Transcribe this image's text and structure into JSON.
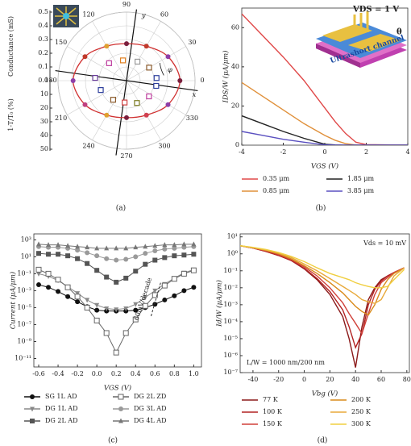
{
  "chart_data": [
    {
      "type": "polar",
      "caption": "(a)",
      "angle_ticks": [
        0,
        30,
        60,
        90,
        120,
        150,
        180,
        210,
        240,
        270,
        300,
        330
      ],
      "rlim": [
        0,
        0.5
      ],
      "r2lim": [
        0,
        50
      ],
      "rticks": [
        0.5,
        0.4,
        0.3,
        0.2,
        0.1,
        {
          "value": 0,
          "label": "0.0"
        }
      ],
      "r2ticks": [
        10,
        20,
        30,
        40,
        50
      ],
      "rlabel": "Conductance (mS)",
      "r2label": "1-T/T₀ (%)",
      "axis_labels": {
        "x": "x",
        "y": "y",
        "angle": "φ"
      },
      "series": [
        {
          "axis": "r",
          "marker": "circle",
          "line_color": "#d03030",
          "theta": [
            0,
            30,
            60,
            90,
            120,
            150,
            180,
            210,
            240,
            270,
            300,
            330
          ],
          "values": [
            0.39,
            0.35,
            0.29,
            0.27,
            0.29,
            0.35,
            0.39,
            0.35,
            0.29,
            0.27,
            0.29,
            0.35
          ],
          "colors": [
            "#7a1f3d",
            "#8e3fa8",
            "#c0392b",
            "#7a1f3d",
            "#e0a030",
            "#c0392b",
            "#8e3fa8",
            "#c04080",
            "#e0a030",
            "#7a1f3d",
            "#d04050",
            "#8e3fa8"
          ]
        },
        {
          "axis": "r2",
          "marker": "square",
          "theta": [
            5,
            30,
            60,
            100,
            135,
            175,
            200,
            235,
            265,
            295,
            325,
            350
          ],
          "values": [
            22,
            19,
            16,
            15,
            18,
            23,
            20,
            17,
            16,
            18,
            20,
            22
          ],
          "colors": [
            "#2c3e9c",
            "#8b5a2b",
            "#9a9a9a",
            "#e08020",
            "#c040a0",
            "#6a3d9a",
            "#2c3e9c",
            "#8b5a2b",
            "#d04040",
            "#7a7a20",
            "#c040a0",
            "#2c3e9c"
          ]
        }
      ]
    },
    {
      "type": "line",
      "caption": "(b)",
      "x_label": "VGS (V)",
      "y_label": "IDS/W (μA/μm)",
      "xlim": [
        -4,
        4
      ],
      "xticks": [
        -4,
        -2,
        0,
        2,
        4
      ],
      "ylim": [
        0,
        70
      ],
      "yticks": [
        0,
        20,
        40,
        60
      ],
      "legend": "bottom",
      "inset_texts": [
        "VDS = 1 V",
        "θ",
        "Ultrashort channel"
      ],
      "x": [
        -4,
        -3,
        -2,
        -1,
        0,
        0.5,
        1,
        1.5,
        2,
        4
      ],
      "series": [
        {
          "name": "0.35 μm",
          "color": "#e04848",
          "values": [
            67,
            56,
            45,
            33,
            19,
            12,
            6,
            1.5,
            0.3,
            0
          ]
        },
        {
          "name": "0.85 μm",
          "color": "#e0903a",
          "values": [
            32,
            25,
            18,
            11,
            5,
            2.5,
            0.8,
            0.1,
            0,
            0
          ]
        },
        {
          "name": "1.85 μm",
          "color": "#222222",
          "values": [
            15,
            11,
            7,
            3.5,
            0.5,
            0.1,
            0,
            0,
            0,
            0
          ]
        },
        {
          "name": "3.85 μm",
          "color": "#5a50c0",
          "values": [
            7,
            5,
            3,
            1.5,
            0.2,
            0,
            0,
            0,
            0,
            0
          ]
        }
      ]
    },
    {
      "type": "line",
      "caption": "(c)",
      "x_label": "VGS (V)",
      "y_label": "Current (μA/μm)",
      "log_y": true,
      "markers": true,
      "legend": "bottom",
      "annotation": "60mV/decade",
      "xlim": [
        -0.65,
        1.08
      ],
      "xticks": [
        -0.6,
        -0.4,
        -0.2,
        {
          "value": 0,
          "label": "0.0"
        },
        0.2,
        0.4,
        0.6,
        0.8,
        {
          "value": 1,
          "label": "1.0"
        }
      ],
      "ylim": [
        1e-12,
        5000
      ],
      "yticks": [
        {
          "value": 1000,
          "label": "10³"
        },
        {
          "value": 10,
          "label": "10¹"
        },
        {
          "value": 0.1,
          "label": "10⁻¹"
        },
        {
          "value": 0.001,
          "label": "10⁻³"
        },
        {
          "value": 1e-05,
          "label": "10⁻⁵"
        },
        {
          "value": 1e-07,
          "label": "10⁻⁷"
        },
        {
          "value": 1e-09,
          "label": "10⁻⁹"
        },
        {
          "value": 1e-11,
          "label": "10⁻¹¹"
        }
      ],
      "x": [
        -0.6,
        -0.5,
        -0.4,
        -0.3,
        -0.2,
        -0.1,
        0,
        0.1,
        0.2,
        0.3,
        0.4,
        0.5,
        0.6,
        0.7,
        0.8,
        0.9,
        1
      ],
      "series": [
        {
          "name": "SG 1L AD",
          "color": "#111111",
          "marker": "circle",
          "values": [
            0.005,
            0.0025,
            0.0008,
            0.0002,
            5e-05,
            1.3e-05,
            5e-06,
            4e-06,
            4e-06,
            4e-06,
            5e-06,
            1e-05,
            2.5e-05,
            8e-05,
            0.00025,
            0.001,
            0.0025
          ]
        },
        {
          "name": "DG 1L AD",
          "color": "#888888",
          "marker": "triangle-down",
          "values": [
            0.1,
            0.05,
            0.016,
            0.003,
            0.0005,
            8e-05,
            2e-05,
            8e-06,
            6e-06,
            8e-06,
            2.5e-05,
            0.00016,
            0.001,
            0.006,
            0.03,
            0.13,
            0.3
          ]
        },
        {
          "name": "DG 2L AD",
          "color": "#555555",
          "marker": "square",
          "values": [
            25,
            20,
            20,
            13,
            6,
            1.6,
            0.25,
            0.04,
            0.01,
            0.03,
            0.2,
            1.3,
            4,
            8,
            13,
            16,
            20
          ]
        },
        {
          "name": "DG 2L ZD",
          "color": "#666666",
          "marker": "square-open",
          "values": [
            0.3,
            0.1,
            0.02,
            0.0025,
            0.0002,
            1e-05,
            3e-07,
            1e-08,
            5e-11,
            1e-08,
            4e-07,
            1.6e-05,
            0.0003,
            0.004,
            0.025,
            0.1,
            0.25
          ]
        },
        {
          "name": "DG 3L AD",
          "color": "#9a9a9a",
          "marker": "circle",
          "values": [
            160,
            130,
            130,
            100,
            60,
            30,
            13,
            6,
            4,
            5,
            10,
            25,
            50,
            80,
            100,
            130,
            160
          ]
        },
        {
          "name": "DG 4L AD",
          "color": "#777777",
          "marker": "triangle-up",
          "values": [
            300,
            250,
            250,
            200,
            160,
            130,
            100,
            100,
            100,
            100,
            130,
            160,
            200,
            250,
            250,
            300,
            300
          ]
        }
      ]
    },
    {
      "type": "line",
      "caption": "(d)",
      "x_label": "Vbg (V)",
      "y_label": "Id/W (μA/μm)",
      "log_y": true,
      "legend": "bottom",
      "annotations": [
        "Vds = 10 mV",
        "L/W = 1000 nm/200 nm"
      ],
      "xlim": [
        -50,
        82
      ],
      "xticks": [
        -40,
        -20,
        0,
        20,
        40,
        60,
        80
      ],
      "ylim": [
        1e-07,
        15
      ],
      "yticks": [
        {
          "value": 10,
          "label": "10¹"
        },
        {
          "value": 1,
          "label": "10⁰"
        },
        {
          "value": 0.1,
          "label": "10⁻¹"
        },
        {
          "value": 0.01,
          "label": "10⁻²"
        },
        {
          "value": 0.001,
          "label": "10⁻³"
        },
        {
          "value": 0.0001,
          "label": "10⁻⁴"
        },
        {
          "value": 1e-05,
          "label": "10⁻⁵"
        },
        {
          "value": 1e-06,
          "label": "10⁻⁶"
        },
        {
          "value": 1e-07,
          "label": "10⁻⁷"
        }
      ],
      "x": [
        -50,
        -40,
        -30,
        -20,
        -10,
        0,
        10,
        20,
        30,
        35,
        40,
        45,
        50,
        55,
        60,
        65,
        70,
        78
      ],
      "series": [
        {
          "name": "77 K",
          "color": "#8b1a1a",
          "values": [
            3,
            2.2,
            1.4,
            0.8,
            0.4,
            0.13,
            0.03,
            0.004,
            0.0002,
            1e-05,
            2e-07,
            5e-05,
            0.002,
            0.01,
            0.03,
            0.05,
            0.08,
            0.15
          ]
        },
        {
          "name": "100 K",
          "color": "#b22222",
          "values": [
            3,
            2.2,
            1.4,
            0.8,
            0.4,
            0.14,
            0.035,
            0.006,
            0.0005,
            5e-05,
            3e-06,
            2e-05,
            0.001,
            0.008,
            0.025,
            0.05,
            0.08,
            0.15
          ]
        },
        {
          "name": "150 K",
          "color": "#d0413a",
          "values": [
            3,
            2.2,
            1.5,
            0.9,
            0.45,
            0.17,
            0.05,
            0.01,
            0.0013,
            0.0003,
            8e-05,
            2e-05,
            0.0003,
            0.004,
            0.02,
            0.04,
            0.08,
            0.15
          ]
        },
        {
          "name": "200 K",
          "color": "#d98a1a",
          "values": [
            3,
            2.3,
            1.6,
            1,
            0.5,
            0.2,
            0.07,
            0.02,
            0.005,
            0.002,
            0.0008,
            0.0004,
            0.00025,
            0.001,
            0.008,
            0.03,
            0.07,
            0.15
          ]
        },
        {
          "name": "250 K",
          "color": "#e8a93a",
          "values": [
            3,
            2.3,
            1.7,
            1.1,
            0.6,
            0.25,
            0.1,
            0.035,
            0.012,
            0.007,
            0.004,
            0.002,
            0.0015,
            0.0012,
            0.002,
            0.01,
            0.05,
            0.15
          ]
        },
        {
          "name": "300 K",
          "color": "#f0cf40",
          "values": [
            3,
            2.4,
            1.8,
            1.2,
            0.7,
            0.35,
            0.15,
            0.07,
            0.04,
            0.03,
            0.02,
            0.015,
            0.012,
            0.01,
            0.01,
            0.012,
            0.03,
            0.12
          ]
        }
      ]
    }
  ]
}
